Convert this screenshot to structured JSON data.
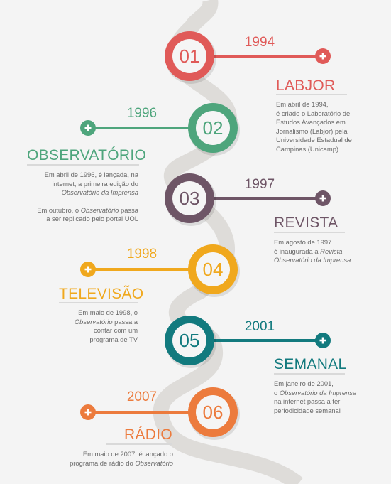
{
  "colors": {
    "background": "#f4f4f4",
    "road": "#dedcd9",
    "labjor": "#e05a58",
    "observatorio": "#4ea57c",
    "revista": "#6e5566",
    "televisao": "#f0a81d",
    "semanal": "#127a7e",
    "radio": "#ec7b3d"
  },
  "milestones": [
    {
      "number": "01",
      "year": "1994",
      "title": "LABJOR",
      "color": "#e05a58",
      "lines": [
        [
          {
            "t": "Em abril de 1994,"
          }
        ],
        [
          {
            "t": "é criado o Laboratório de"
          }
        ],
        [
          {
            "t": "Estudos Avançados em"
          }
        ],
        [
          {
            "t": "Jornalismo (Labjor) pela"
          }
        ],
        [
          {
            "t": "Universidade Estadual de"
          }
        ],
        [
          {
            "t": "Campinas (Unicamp)"
          }
        ]
      ]
    },
    {
      "number": "02",
      "year": "1996",
      "title": "OBSERVATÓRIO",
      "color": "#4ea57c",
      "lines": [
        [
          {
            "t": "Em abril de 1996, é lançada, na"
          }
        ],
        [
          {
            "t": "internet, a primeira edição do"
          }
        ],
        [
          {
            "t": "Observatório da Imprensa",
            "i": true
          }
        ]
      ],
      "lines2": [
        [
          {
            "t": "Em outubro, o "
          },
          {
            "t": "Observatório",
            "i": true
          },
          {
            "t": " passa"
          }
        ],
        [
          {
            "t": "a ser replicado pelo portal UOL"
          }
        ]
      ]
    },
    {
      "number": "03",
      "year": "1997",
      "title": "REVISTA",
      "color": "#6e5566",
      "lines": [
        [
          {
            "t": "Em agosto de 1997"
          }
        ],
        [
          {
            "t": "é inaugurada a "
          },
          {
            "t": "Revista",
            "i": true
          }
        ],
        [
          {
            "t": "Observatório da Imprensa",
            "i": true
          }
        ]
      ]
    },
    {
      "number": "04",
      "year": "1998",
      "title": "TELEVISÃO",
      "color": "#f0a81d",
      "lines": [
        [
          {
            "t": "Em maio de 1998, o"
          }
        ],
        [
          {
            "t": "Observatório",
            "i": true
          },
          {
            "t": " passa a"
          }
        ],
        [
          {
            "t": "contar com um"
          }
        ],
        [
          {
            "t": "programa de TV"
          }
        ]
      ]
    },
    {
      "number": "05",
      "year": "2001",
      "title": "SEMANAL",
      "color": "#127a7e",
      "lines": [
        [
          {
            "t": "Em janeiro de 2001,"
          }
        ],
        [
          {
            "t": "o "
          },
          {
            "t": "Observatório da Imprensa",
            "i": true
          }
        ],
        [
          {
            "t": "na internet passa a ter"
          }
        ],
        [
          {
            "t": "periodicidade semanal"
          }
        ]
      ]
    },
    {
      "number": "06",
      "year": "2007",
      "title": "RÁDIO",
      "color": "#ec7b3d",
      "lines": [
        [
          {
            "t": "Em maio de 2007, é lançado o"
          }
        ],
        [
          {
            "t": "programa de rádio do "
          },
          {
            "t": "Observatório",
            "i": true
          }
        ]
      ]
    }
  ]
}
